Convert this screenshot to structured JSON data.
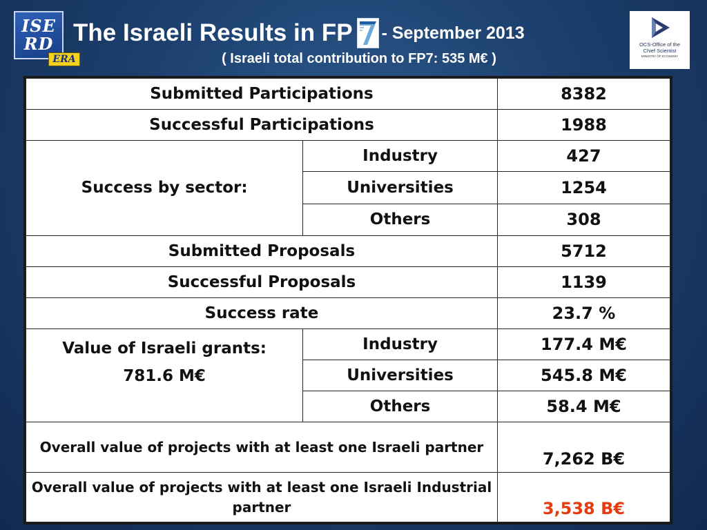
{
  "header": {
    "logo_left": {
      "line1": "ISE",
      "line2": "RD",
      "badge": "ERA"
    },
    "title": "The Israeli Results in FP",
    "fp_logo": "7",
    "title_date": "- September 2013",
    "subtitle": "( Israeli total contribution to FP7: 535 M€ )",
    "logo_right": {
      "line1": "OCS-Office of the",
      "line2": "Chief Scientist",
      "line3": "MINISTRY OF ECONOMY"
    }
  },
  "table": {
    "submitted_participations": {
      "label": "Submitted Participations",
      "value": "8382"
    },
    "successful_participations": {
      "label": "Successful Participations",
      "value": "1988"
    },
    "success_by_sector": {
      "label": "Success by sector:",
      "rows": [
        {
          "sector": "Industry",
          "value": "427"
        },
        {
          "sector": "Universities",
          "value": "1254"
        },
        {
          "sector": "Others",
          "value": "308"
        }
      ]
    },
    "submitted_proposals": {
      "label": "Submitted Proposals",
      "value": "5712"
    },
    "successful_proposals": {
      "label": "Successful Proposals",
      "value": "1139"
    },
    "success_rate": {
      "label": "Success rate",
      "value": "23.7 %"
    },
    "grants": {
      "label": "Value of Israeli grants:",
      "total": "781.6 M€",
      "rows": [
        {
          "sector": "Industry",
          "value": "177.4 M€"
        },
        {
          "sector": "Universities",
          "value": "545.8 M€"
        },
        {
          "sector": "Others",
          "value": "58.4 M€"
        }
      ]
    },
    "overall_partner": {
      "label": "Overall value of projects with at least one  Israeli partner",
      "value": "7,262 B€"
    },
    "overall_industrial": {
      "label": "Overall value of projects with at least one Israeli Industrial partner",
      "value": "3,538 B€"
    }
  },
  "colors": {
    "background": "#1c3f6e",
    "highlight_value": "#e43c10"
  }
}
